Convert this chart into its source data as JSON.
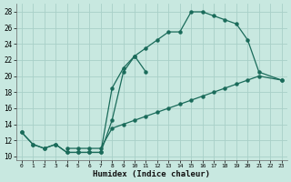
{
  "xlabel": "Humidex (Indice chaleur)",
  "bg_color": "#c8e8e0",
  "grid_color": "#a8d0c8",
  "line_color": "#1a6b5a",
  "xlim": [
    -0.5,
    23.5
  ],
  "ylim": [
    9.5,
    29.0
  ],
  "xticks": [
    0,
    1,
    2,
    3,
    4,
    5,
    6,
    7,
    8,
    9,
    10,
    11,
    12,
    13,
    14,
    15,
    16,
    17,
    18,
    19,
    20,
    21,
    22,
    23
  ],
  "yticks": [
    10,
    12,
    14,
    16,
    18,
    20,
    22,
    24,
    26,
    28
  ],
  "curve_upper_x": [
    0,
    1,
    2,
    3,
    4,
    5,
    6,
    7,
    8,
    9,
    10,
    11,
    12,
    13,
    14,
    15,
    16,
    17,
    18,
    19,
    20,
    21,
    23
  ],
  "curve_upper_y": [
    13,
    11.5,
    11,
    11.5,
    10.5,
    10.5,
    10.5,
    10.5,
    18.5,
    21,
    22.5,
    23.5,
    24.5,
    25.5,
    25.5,
    28,
    28,
    27.5,
    27,
    26.5,
    24.5,
    20.5,
    19.5
  ],
  "curve_mid_x": [
    0,
    1,
    2,
    3,
    4,
    5,
    6,
    7,
    8,
    9,
    10,
    11
  ],
  "curve_mid_y": [
    13,
    11.5,
    11,
    11.5,
    10.5,
    10.5,
    10.5,
    10.5,
    14.5,
    20.5,
    22.5,
    20.5
  ],
  "curve_low_x": [
    4,
    5,
    6,
    7,
    8,
    9,
    10,
    11,
    12,
    13,
    14,
    15,
    16,
    17,
    18,
    19,
    20,
    21,
    23
  ],
  "curve_low_y": [
    11,
    11,
    11,
    11,
    13.5,
    14,
    14.5,
    15,
    15.5,
    16,
    16.5,
    17,
    17.5,
    18,
    18.5,
    19,
    19.5,
    20,
    19.5
  ]
}
